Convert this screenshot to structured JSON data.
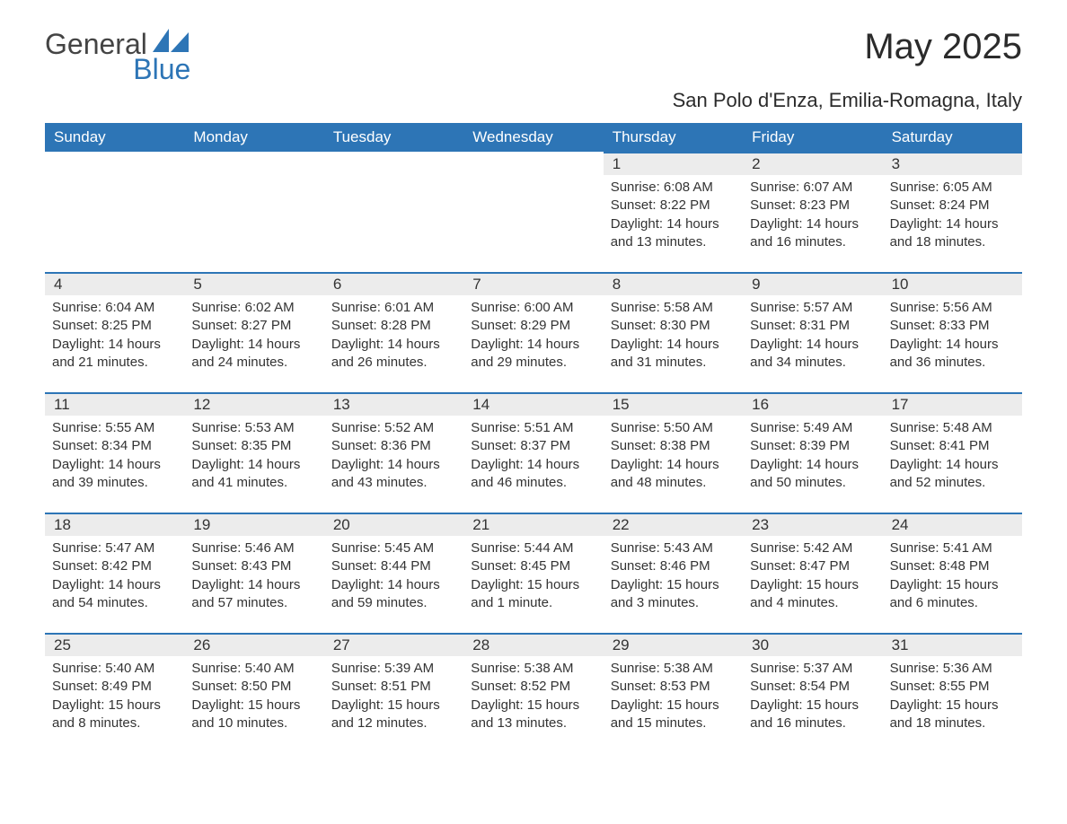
{
  "logo": {
    "text_general": "General",
    "text_blue": "Blue",
    "accent_color": "#2d75b6",
    "text_color": "#444444"
  },
  "title": "May 2025",
  "subtitle": "San Polo d'Enza, Emilia-Romagna, Italy",
  "colors": {
    "header_bg": "#2d75b6",
    "header_text": "#ffffff",
    "daynum_bg": "#ececec",
    "daynum_border": "#2d75b6",
    "body_text": "#333333",
    "background": "#ffffff"
  },
  "fonts": {
    "title_size_pt": 30,
    "subtitle_size_pt": 16,
    "header_size_pt": 13,
    "body_size_pt": 11
  },
  "day_headers": [
    "Sunday",
    "Monday",
    "Tuesday",
    "Wednesday",
    "Thursday",
    "Friday",
    "Saturday"
  ],
  "calendar": {
    "type": "table",
    "columns": 7,
    "rows": 5,
    "cells": [
      [
        {
          "empty": true
        },
        {
          "empty": true
        },
        {
          "empty": true
        },
        {
          "empty": true
        },
        {
          "day": "1",
          "sunrise": "Sunrise: 6:08 AM",
          "sunset": "Sunset: 8:22 PM",
          "daylight": "Daylight: 14 hours and 13 minutes."
        },
        {
          "day": "2",
          "sunrise": "Sunrise: 6:07 AM",
          "sunset": "Sunset: 8:23 PM",
          "daylight": "Daylight: 14 hours and 16 minutes."
        },
        {
          "day": "3",
          "sunrise": "Sunrise: 6:05 AM",
          "sunset": "Sunset: 8:24 PM",
          "daylight": "Daylight: 14 hours and 18 minutes."
        }
      ],
      [
        {
          "day": "4",
          "sunrise": "Sunrise: 6:04 AM",
          "sunset": "Sunset: 8:25 PM",
          "daylight": "Daylight: 14 hours and 21 minutes."
        },
        {
          "day": "5",
          "sunrise": "Sunrise: 6:02 AM",
          "sunset": "Sunset: 8:27 PM",
          "daylight": "Daylight: 14 hours and 24 minutes."
        },
        {
          "day": "6",
          "sunrise": "Sunrise: 6:01 AM",
          "sunset": "Sunset: 8:28 PM",
          "daylight": "Daylight: 14 hours and 26 minutes."
        },
        {
          "day": "7",
          "sunrise": "Sunrise: 6:00 AM",
          "sunset": "Sunset: 8:29 PM",
          "daylight": "Daylight: 14 hours and 29 minutes."
        },
        {
          "day": "8",
          "sunrise": "Sunrise: 5:58 AM",
          "sunset": "Sunset: 8:30 PM",
          "daylight": "Daylight: 14 hours and 31 minutes."
        },
        {
          "day": "9",
          "sunrise": "Sunrise: 5:57 AM",
          "sunset": "Sunset: 8:31 PM",
          "daylight": "Daylight: 14 hours and 34 minutes."
        },
        {
          "day": "10",
          "sunrise": "Sunrise: 5:56 AM",
          "sunset": "Sunset: 8:33 PM",
          "daylight": "Daylight: 14 hours and 36 minutes."
        }
      ],
      [
        {
          "day": "11",
          "sunrise": "Sunrise: 5:55 AM",
          "sunset": "Sunset: 8:34 PM",
          "daylight": "Daylight: 14 hours and 39 minutes."
        },
        {
          "day": "12",
          "sunrise": "Sunrise: 5:53 AM",
          "sunset": "Sunset: 8:35 PM",
          "daylight": "Daylight: 14 hours and 41 minutes."
        },
        {
          "day": "13",
          "sunrise": "Sunrise: 5:52 AM",
          "sunset": "Sunset: 8:36 PM",
          "daylight": "Daylight: 14 hours and 43 minutes."
        },
        {
          "day": "14",
          "sunrise": "Sunrise: 5:51 AM",
          "sunset": "Sunset: 8:37 PM",
          "daylight": "Daylight: 14 hours and 46 minutes."
        },
        {
          "day": "15",
          "sunrise": "Sunrise: 5:50 AM",
          "sunset": "Sunset: 8:38 PM",
          "daylight": "Daylight: 14 hours and 48 minutes."
        },
        {
          "day": "16",
          "sunrise": "Sunrise: 5:49 AM",
          "sunset": "Sunset: 8:39 PM",
          "daylight": "Daylight: 14 hours and 50 minutes."
        },
        {
          "day": "17",
          "sunrise": "Sunrise: 5:48 AM",
          "sunset": "Sunset: 8:41 PM",
          "daylight": "Daylight: 14 hours and 52 minutes."
        }
      ],
      [
        {
          "day": "18",
          "sunrise": "Sunrise: 5:47 AM",
          "sunset": "Sunset: 8:42 PM",
          "daylight": "Daylight: 14 hours and 54 minutes."
        },
        {
          "day": "19",
          "sunrise": "Sunrise: 5:46 AM",
          "sunset": "Sunset: 8:43 PM",
          "daylight": "Daylight: 14 hours and 57 minutes."
        },
        {
          "day": "20",
          "sunrise": "Sunrise: 5:45 AM",
          "sunset": "Sunset: 8:44 PM",
          "daylight": "Daylight: 14 hours and 59 minutes."
        },
        {
          "day": "21",
          "sunrise": "Sunrise: 5:44 AM",
          "sunset": "Sunset: 8:45 PM",
          "daylight": "Daylight: 15 hours and 1 minute."
        },
        {
          "day": "22",
          "sunrise": "Sunrise: 5:43 AM",
          "sunset": "Sunset: 8:46 PM",
          "daylight": "Daylight: 15 hours and 3 minutes."
        },
        {
          "day": "23",
          "sunrise": "Sunrise: 5:42 AM",
          "sunset": "Sunset: 8:47 PM",
          "daylight": "Daylight: 15 hours and 4 minutes."
        },
        {
          "day": "24",
          "sunrise": "Sunrise: 5:41 AM",
          "sunset": "Sunset: 8:48 PM",
          "daylight": "Daylight: 15 hours and 6 minutes."
        }
      ],
      [
        {
          "day": "25",
          "sunrise": "Sunrise: 5:40 AM",
          "sunset": "Sunset: 8:49 PM",
          "daylight": "Daylight: 15 hours and 8 minutes."
        },
        {
          "day": "26",
          "sunrise": "Sunrise: 5:40 AM",
          "sunset": "Sunset: 8:50 PM",
          "daylight": "Daylight: 15 hours and 10 minutes."
        },
        {
          "day": "27",
          "sunrise": "Sunrise: 5:39 AM",
          "sunset": "Sunset: 8:51 PM",
          "daylight": "Daylight: 15 hours and 12 minutes."
        },
        {
          "day": "28",
          "sunrise": "Sunrise: 5:38 AM",
          "sunset": "Sunset: 8:52 PM",
          "daylight": "Daylight: 15 hours and 13 minutes."
        },
        {
          "day": "29",
          "sunrise": "Sunrise: 5:38 AM",
          "sunset": "Sunset: 8:53 PM",
          "daylight": "Daylight: 15 hours and 15 minutes."
        },
        {
          "day": "30",
          "sunrise": "Sunrise: 5:37 AM",
          "sunset": "Sunset: 8:54 PM",
          "daylight": "Daylight: 15 hours and 16 minutes."
        },
        {
          "day": "31",
          "sunrise": "Sunrise: 5:36 AM",
          "sunset": "Sunset: 8:55 PM",
          "daylight": "Daylight: 15 hours and 18 minutes."
        }
      ]
    ]
  }
}
